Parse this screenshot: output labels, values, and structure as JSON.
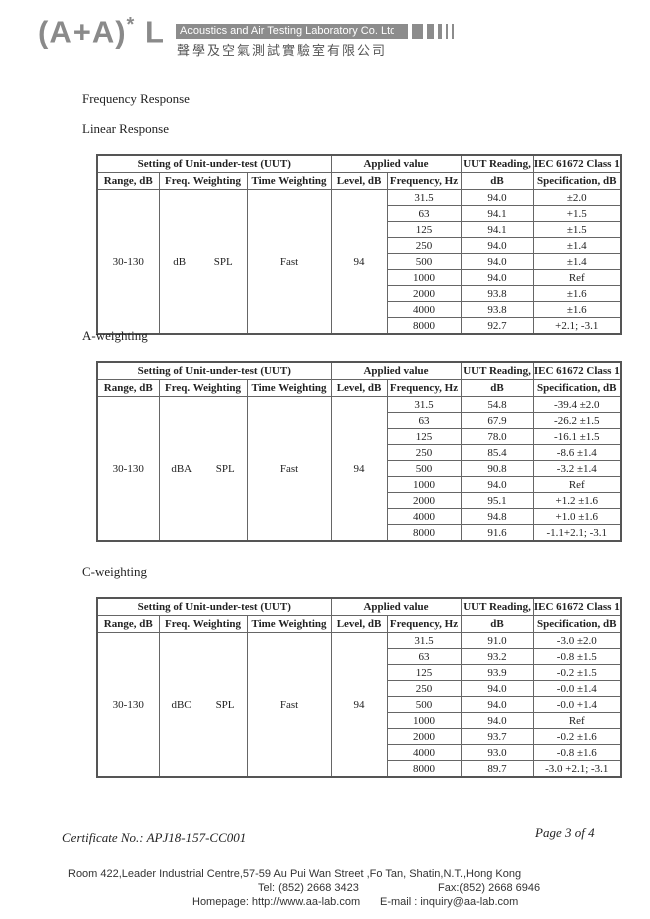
{
  "header": {
    "logo_text": "(A+A)*L",
    "company_en": "Acoustics and Air Testing Laboratory Co. Ltd.",
    "company_zh": "聲學及空氣測試實驗室有限公司"
  },
  "title": "Frequency Response",
  "table_headers": {
    "setting": "Setting of Unit-under-test (UUT)",
    "applied": "Applied value",
    "uut_reading_1": "UUT Reading,",
    "uut_reading_2": "dB",
    "spec_1": "IEC 61672 Class 1",
    "spec_2": "Specification, dB",
    "range": "Range, dB",
    "freq_weighting": "Freq. Weighting",
    "time_weighting": "Time Weighting",
    "level": "Level, dB",
    "frequency": "Frequency, Hz"
  },
  "sections": [
    {
      "label": "Linear Response",
      "range": "30-130",
      "weighting": "dB",
      "weighting2": "SPL",
      "time": "Fast",
      "level": "94",
      "rows": [
        [
          "31.5",
          "94.0",
          "±2.0"
        ],
        [
          "63",
          "94.1",
          "+1.5"
        ],
        [
          "125",
          "94.1",
          "±1.5"
        ],
        [
          "250",
          "94.0",
          "±1.4"
        ],
        [
          "500",
          "94.0",
          "±1.4"
        ],
        [
          "1000",
          "94.0",
          "Ref"
        ],
        [
          "2000",
          "93.8",
          "±1.6"
        ],
        [
          "4000",
          "93.8",
          "±1.6"
        ],
        [
          "8000",
          "92.7",
          "+2.1; -3.1"
        ]
      ]
    },
    {
      "label": "A-weighting",
      "range": "30-130",
      "weighting": "dBA",
      "weighting2": "SPL",
      "time": "Fast",
      "level": "94",
      "rows": [
        [
          "31.5",
          "54.8",
          "-39.4 ±2.0"
        ],
        [
          "63",
          "67.9",
          "-26.2 ±1.5"
        ],
        [
          "125",
          "78.0",
          "-16.1 ±1.5"
        ],
        [
          "250",
          "85.4",
          "-8.6 ±1.4"
        ],
        [
          "500",
          "90.8",
          "-3.2 ±1.4"
        ],
        [
          "1000",
          "94.0",
          "Ref"
        ],
        [
          "2000",
          "95.1",
          "+1.2 ±1.6"
        ],
        [
          "4000",
          "94.8",
          "+1.0 ±1.6"
        ],
        [
          "8000",
          "91.6",
          "-1.1+2.1; -3.1"
        ]
      ]
    },
    {
      "label": "C-weighting",
      "range": "30-130",
      "weighting": "dBC",
      "weighting2": "SPL",
      "time": "Fast",
      "level": "94",
      "rows": [
        [
          "31.5",
          "91.0",
          "-3.0 ±2.0"
        ],
        [
          "63",
          "93.2",
          "-0.8 ±1.5"
        ],
        [
          "125",
          "93.9",
          "-0.2 ±1.5"
        ],
        [
          "250",
          "94.0",
          "-0.0 ±1.4"
        ],
        [
          "500",
          "94.0",
          "-0.0 +1.4"
        ],
        [
          "1000",
          "94.0",
          "Ref"
        ],
        [
          "2000",
          "93.7",
          "-0.2 ±1.6"
        ],
        [
          "4000",
          "93.0",
          "-0.8 ±1.6"
        ],
        [
          "8000",
          "89.7",
          "-3.0 +2.1; -3.1"
        ]
      ]
    }
  ],
  "certificate": "Certificate No.: APJ18-157-CC001",
  "page": "Page 3 of 4",
  "footer": {
    "address": "Room 422,Leader Industrial Centre,57-59 Au Pui Wan Street ,Fo Tan, Shatin,N.T.,Hong Kong",
    "tel": "Tel: (852) 2668 3423",
    "fax": "Fax:(852) 2668 6946",
    "homepage": "Homepage: http://www.aa-lab.com",
    "email": "E-mail : inquiry@aa-lab.com"
  }
}
